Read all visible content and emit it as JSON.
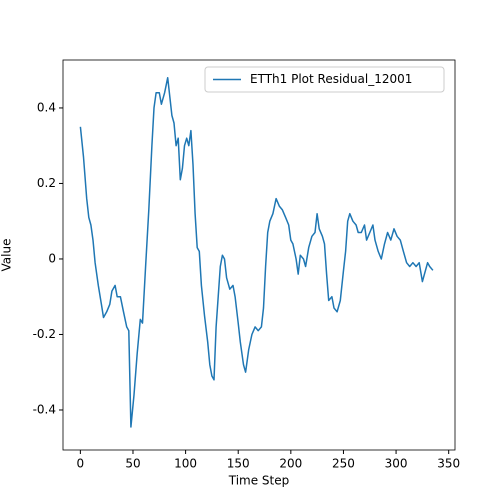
{
  "chart_data": {
    "type": "line",
    "xlabel": "Time Step",
    "ylabel": "Value",
    "x": [
      0,
      3,
      6,
      8,
      10,
      12,
      14,
      17,
      20,
      22,
      25,
      28,
      30,
      33,
      35,
      38,
      41,
      44,
      46,
      48,
      51,
      54,
      57,
      59,
      62,
      65,
      68,
      70,
      72,
      75,
      77,
      80,
      83,
      85,
      87,
      89,
      91,
      93,
      95,
      97,
      99,
      101,
      103,
      105,
      107,
      109,
      111,
      113,
      115,
      118,
      121,
      123,
      125,
      127,
      129,
      131,
      133,
      135,
      137,
      139,
      142,
      145,
      147,
      150,
      152,
      155,
      157,
      160,
      163,
      166,
      169,
      172,
      174,
      176,
      178,
      180,
      183,
      186,
      189,
      192,
      195,
      198,
      200,
      202,
      205,
      207,
      209,
      212,
      214,
      217,
      220,
      223,
      225,
      227,
      230,
      232,
      234,
      236,
      239,
      241,
      244,
      247,
      250,
      252,
      254,
      256,
      259,
      262,
      264,
      267,
      270,
      272,
      275,
      278,
      280,
      283,
      286,
      289,
      292,
      295,
      298,
      301,
      304,
      307,
      310,
      313,
      316,
      319,
      322,
      325,
      328,
      330,
      332,
      335
    ],
    "series": [
      {
        "name": "ETTh1 Plot Residual_12001",
        "color": "#1f77b4",
        "values": [
          0.35,
          0.27,
          0.16,
          0.11,
          0.09,
          0.05,
          -0.01,
          -0.07,
          -0.12,
          -0.155,
          -0.14,
          -0.12,
          -0.085,
          -0.07,
          -0.1,
          -0.1,
          -0.14,
          -0.18,
          -0.19,
          -0.445,
          -0.36,
          -0.25,
          -0.16,
          -0.17,
          -0.02,
          0.13,
          0.3,
          0.4,
          0.44,
          0.44,
          0.41,
          0.44,
          0.48,
          0.43,
          0.38,
          0.36,
          0.3,
          0.32,
          0.21,
          0.24,
          0.3,
          0.32,
          0.3,
          0.34,
          0.25,
          0.12,
          0.03,
          0.02,
          -0.07,
          -0.15,
          -0.22,
          -0.28,
          -0.31,
          -0.32,
          -0.18,
          -0.1,
          -0.02,
          0.01,
          0.0,
          -0.05,
          -0.08,
          -0.07,
          -0.1,
          -0.17,
          -0.22,
          -0.28,
          -0.3,
          -0.24,
          -0.2,
          -0.18,
          -0.19,
          -0.18,
          -0.13,
          -0.02,
          0.07,
          0.1,
          0.12,
          0.16,
          0.14,
          0.13,
          0.11,
          0.09,
          0.05,
          0.04,
          0.0,
          -0.04,
          0.01,
          0.0,
          -0.02,
          0.03,
          0.06,
          0.07,
          0.12,
          0.08,
          0.06,
          0.04,
          -0.04,
          -0.11,
          -0.1,
          -0.13,
          -0.14,
          -0.11,
          -0.03,
          0.02,
          0.1,
          0.12,
          0.1,
          0.09,
          0.07,
          0.07,
          0.09,
          0.05,
          0.07,
          0.09,
          0.05,
          0.02,
          0.0,
          0.04,
          0.07,
          0.05,
          0.08,
          0.06,
          0.05,
          0.02,
          -0.01,
          -0.02,
          -0.01,
          -0.02,
          -0.01,
          -0.06,
          -0.03,
          -0.01,
          -0.02,
          -0.03
        ]
      }
    ],
    "xlim": [
      -16.5,
      356
    ],
    "ylim": [
      -0.506,
      0.527
    ],
    "xticks": [
      0,
      50,
      100,
      150,
      200,
      250,
      300,
      350
    ],
    "yticks": [
      -0.4,
      -0.2,
      0.0,
      0.2,
      0.4
    ],
    "legend": "upper right"
  }
}
